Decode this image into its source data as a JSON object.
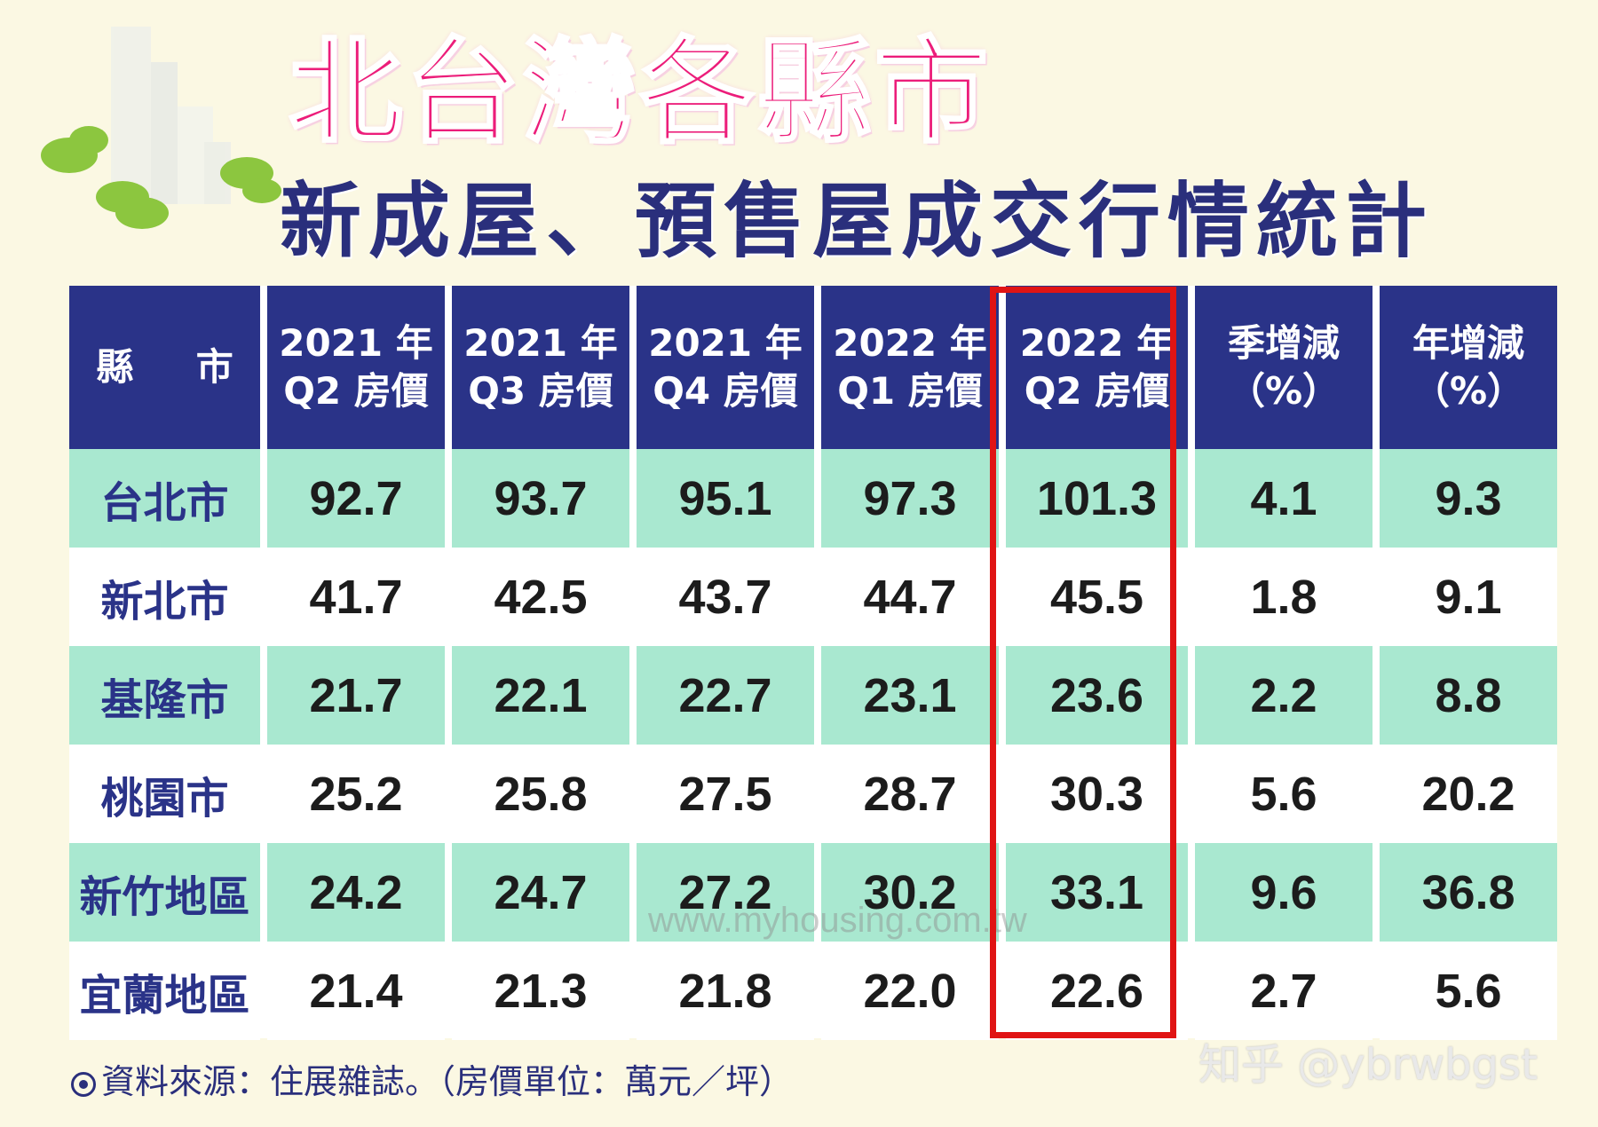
{
  "title": "北台灣各縣市",
  "subtitle": "新成屋、預售屋成交行情統計",
  "headers": [
    [
      "縣 市"
    ],
    [
      "2021 年",
      "Q2 房價"
    ],
    [
      "2021 年",
      "Q3 房價"
    ],
    [
      "2021 年",
      "Q4 房價"
    ],
    [
      "2022 年",
      "Q1 房價"
    ],
    [
      "2022 年",
      "Q2 房價"
    ],
    [
      "季增減",
      "（%）"
    ],
    [
      "年增減",
      "（%）"
    ]
  ],
  "rows": [
    [
      "台北市",
      "92.7",
      "93.7",
      "95.1",
      "97.3",
      "101.3",
      "4.1",
      "9.3"
    ],
    [
      "新北市",
      "41.7",
      "42.5",
      "43.7",
      "44.7",
      "45.5",
      "1.8",
      "9.1"
    ],
    [
      "基隆市",
      "21.7",
      "22.1",
      "22.7",
      "23.1",
      "23.6",
      "2.2",
      "8.8"
    ],
    [
      "桃園市",
      "25.2",
      "25.8",
      "27.5",
      "28.7",
      "30.3",
      "5.6",
      "20.2"
    ],
    [
      "新竹地區",
      "24.2",
      "24.7",
      "27.2",
      "30.2",
      "33.1",
      "9.6",
      "36.8"
    ],
    [
      "宜蘭地區",
      "21.4",
      "21.3",
      "21.8",
      "22.0",
      "22.6",
      "2.7",
      "5.6"
    ]
  ],
  "source": "資料來源：住展雜誌。（房價單位：萬元／坪）",
  "watermark": "www.myhousing.com.tw",
  "credit": "知乎 @ybrwbgst",
  "colors": {
    "title": "#ec1d7a",
    "subtitle": "#2a2f7c",
    "header_bg": "#2a3388",
    "row_band": "#a9e8d0",
    "highlight_border": "#e01414"
  }
}
